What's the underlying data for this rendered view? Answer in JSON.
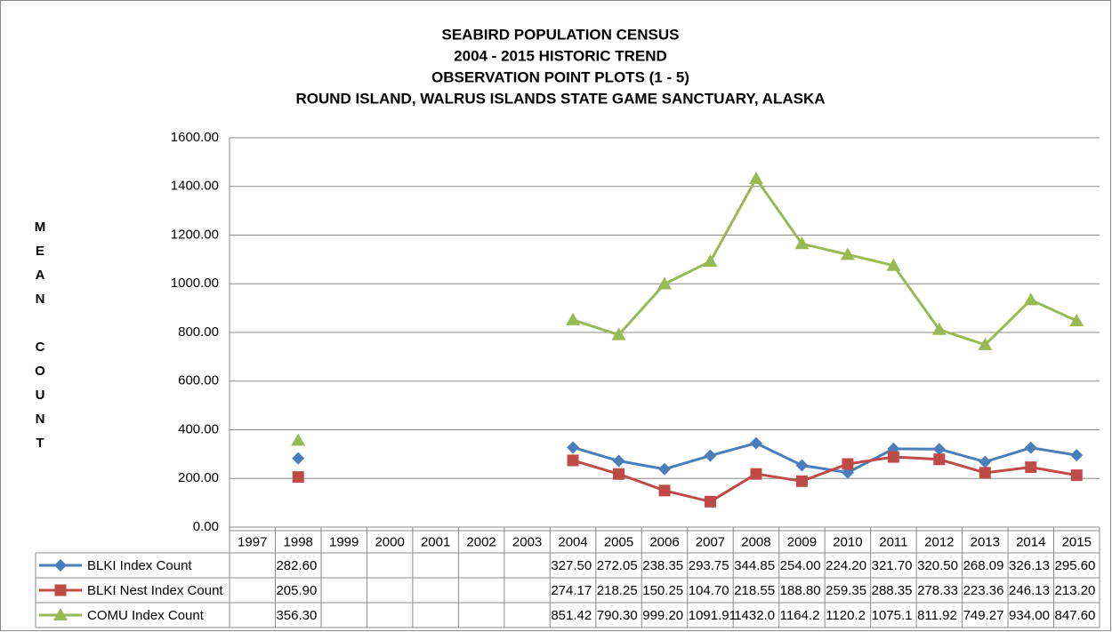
{
  "chart_data": {
    "type": "line",
    "title": [
      "SEABIRD POPULATION CENSUS",
      "2004 - 2015 HISTORIC TREND",
      "OBSERVATION POINT PLOTS (1 - 5)",
      "ROUND ISLAND, WALRUS ISLANDS STATE GAME SANCTUARY, ALASKA"
    ],
    "y_label": "MEAN COUNT",
    "categories": [
      "1997",
      "1998",
      "1999",
      "2000",
      "2001",
      "2002",
      "2003",
      "2004",
      "2005",
      "2006",
      "2007",
      "2008",
      "2009",
      "2010",
      "2011",
      "2012",
      "2013",
      "2014",
      "2015"
    ],
    "series": [
      {
        "name": "BLKI Index Count",
        "color": "#4a7ebb",
        "marker": "diamond",
        "values": [
          null,
          282.6,
          null,
          null,
          null,
          null,
          null,
          327.5,
          272.05,
          238.35,
          293.75,
          344.85,
          254.0,
          224.2,
          321.7,
          320.5,
          268.09,
          326.13,
          295.6
        ],
        "value_labels": [
          null,
          "282.60",
          null,
          null,
          null,
          null,
          null,
          "327.50",
          "272.05",
          "238.35",
          "293.75",
          "344.85",
          "254.00",
          "224.20",
          "321.70",
          "320.50",
          "268.09",
          "326.13",
          "295.60"
        ]
      },
      {
        "name": "BLKI Nest Index Count",
        "color": "#be4b48",
        "marker": "square",
        "values": [
          null,
          205.9,
          null,
          null,
          null,
          null,
          null,
          274.17,
          218.25,
          150.25,
          104.7,
          218.55,
          188.8,
          259.35,
          288.35,
          278.33,
          223.36,
          246.13,
          213.2
        ],
        "value_labels": [
          null,
          "205.90",
          null,
          null,
          null,
          null,
          null,
          "274.17",
          "218.25",
          "150.25",
          "104.70",
          "218.55",
          "188.80",
          "259.35",
          "288.35",
          "278.33",
          "223.36",
          "246.13",
          "213.20"
        ]
      },
      {
        "name": "COMU Index Count",
        "color": "#98b954",
        "marker": "triangle",
        "values": [
          null,
          356.3,
          null,
          null,
          null,
          null,
          null,
          851.42,
          790.3,
          999.2,
          1091.91,
          1432.0,
          1164.2,
          1120.2,
          1075.1,
          811.92,
          749.27,
          934.0,
          847.6
        ],
        "value_labels": [
          null,
          "356.30",
          null,
          null,
          null,
          null,
          null,
          "851.42",
          "790.30",
          "999.20",
          "1091.91",
          "1432.0",
          "1164.2",
          "1120.2",
          "1075.1",
          "811.92",
          "749.27",
          "934.00",
          "847.60"
        ]
      }
    ],
    "ylim": [
      0,
      1600
    ],
    "yticks": [
      {
        "value": 0,
        "label": "0.00"
      },
      {
        "value": 200,
        "label": "200.00"
      },
      {
        "value": 400,
        "label": "400.00"
      },
      {
        "value": 600,
        "label": "600.00"
      },
      {
        "value": 800,
        "label": "800.00"
      },
      {
        "value": 1000,
        "label": "1000.00"
      },
      {
        "value": 1200,
        "label": "1200.00"
      },
      {
        "value": 1400,
        "label": "1400.00"
      },
      {
        "value": 1600,
        "label": "1600.00"
      }
    ],
    "grid": true
  }
}
